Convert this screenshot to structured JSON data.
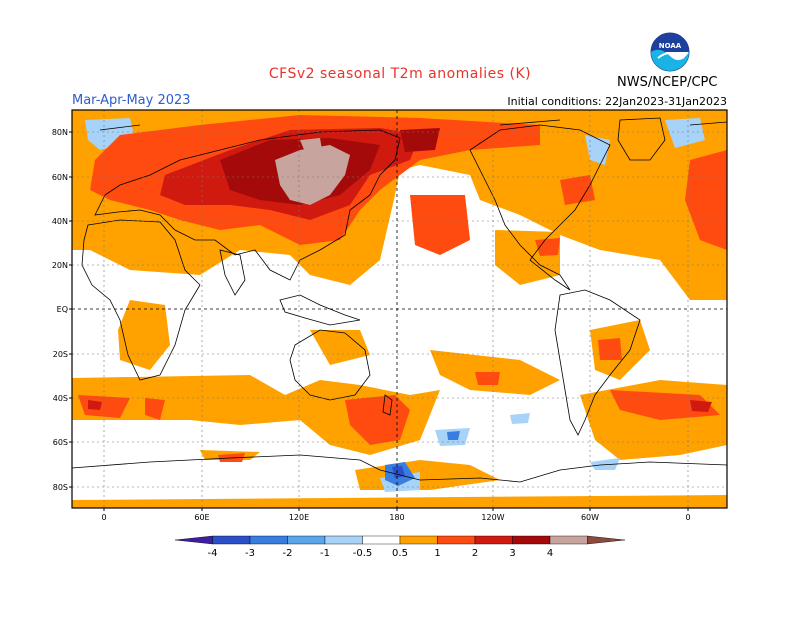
{
  "header": {
    "title": "CFSv2 seasonal T2m anomalies (K)",
    "season": "Mar-Apr-May 2023",
    "initial_conditions": "Initial conditions: 22Jan2023-31Jan2023",
    "agency": "NWS/NCEP/CPC",
    "logo_text": "NOAA"
  },
  "map": {
    "lat_ticks": [
      "80N",
      "60N",
      "40N",
      "20N",
      "EQ",
      "20S",
      "40S",
      "60S",
      "80S"
    ],
    "lon_ticks": [
      "0",
      "60E",
      "120E",
      "180",
      "120W",
      "60W",
      "0"
    ],
    "background_color": "#ffffff",
    "frame_color": "#000000"
  },
  "colorbar": {
    "labels": [
      "-4",
      "-3",
      "-2",
      "-1",
      "-0.5",
      "0.5",
      "1",
      "2",
      "3",
      "4"
    ],
    "colors": [
      "#3f1fa0",
      "#2a4fc9",
      "#3a7de0",
      "#5aa6ec",
      "#a7d3f8",
      "#ffffff",
      "#ffa200",
      "#ff4a10",
      "#d01a0f",
      "#a50a0a",
      "#c8a49e",
      "#8a4b3c"
    ]
  },
  "regions": [
    {
      "id": "arctic-ocean",
      "level": 1
    },
    {
      "id": "siberia",
      "level": 3
    },
    {
      "id": "central-asia",
      "level": 4
    },
    {
      "id": "north-pacific",
      "level": 2
    },
    {
      "id": "south-atlantic",
      "level": 1
    },
    {
      "id": "antarctic-ross",
      "level": -2
    }
  ]
}
